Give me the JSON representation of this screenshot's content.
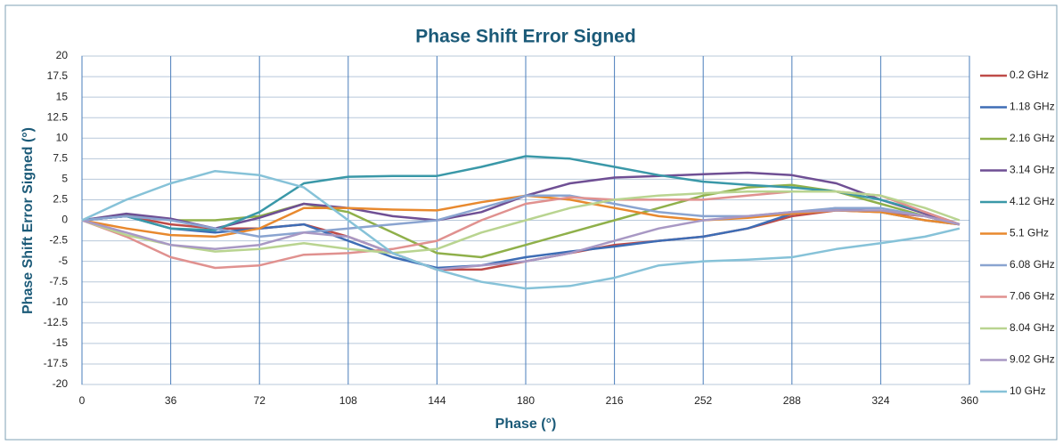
{
  "chart_data": {
    "type": "line",
    "title": "Phase Shift Error Signed",
    "xlabel": "Phase (°)",
    "ylabel": "Phase Shift Error Signed (°)",
    "x": [
      0,
      18,
      36,
      54,
      72,
      90,
      108,
      126,
      144,
      162,
      180,
      198,
      216,
      234,
      252,
      270,
      288,
      306,
      324,
      342,
      356
    ],
    "series": [
      {
        "name": "0.2 GHz",
        "color": "#be4b48",
        "values": [
          0,
          0.5,
          -0.5,
          -1,
          -1,
          -0.5,
          -2,
          -4,
          -6,
          -6,
          -5,
          -4,
          -3,
          -2.5,
          -2,
          -1,
          0.5,
          1.2,
          1,
          0.5,
          -0.5
        ]
      },
      {
        "name": "1.18 GHz",
        "color": "#3e6db5",
        "values": [
          0,
          0.5,
          -1,
          -1.5,
          -1,
          -0.5,
          -2.5,
          -4.5,
          -5.8,
          -5.5,
          -4.5,
          -3.8,
          -3.2,
          -2.5,
          -2,
          -1,
          0.8,
          1.5,
          1,
          0,
          -0.5
        ]
      },
      {
        "name": "2.16 GHz",
        "color": "#8fb04a",
        "values": [
          0,
          0.7,
          0,
          0,
          0.5,
          2,
          1,
          -1.5,
          -4,
          -4.5,
          -3,
          -1.5,
          0,
          1.5,
          3,
          4,
          4.3,
          3.5,
          2,
          0.5,
          -0.5
        ]
      },
      {
        "name": "3.14 GHz",
        "color": "#6f4f94",
        "values": [
          0,
          0.8,
          0.2,
          -1,
          0.3,
          2,
          1.5,
          0.5,
          0,
          1,
          3,
          4.5,
          5.2,
          5.4,
          5.6,
          5.8,
          5.5,
          4.5,
          2.5,
          0.8,
          -0.5
        ]
      },
      {
        "name": "4.12 GHz",
        "color": "#3a98a8",
        "values": [
          0,
          0.5,
          -1,
          -1.2,
          1,
          4.5,
          5.3,
          5.4,
          5.4,
          6.5,
          7.8,
          7.5,
          6.5,
          5.5,
          4.7,
          4.3,
          4,
          3.5,
          2.5,
          1,
          -0.5
        ]
      },
      {
        "name": "5.1 GHz",
        "color": "#e8892e",
        "values": [
          0,
          -1,
          -1.8,
          -2,
          -1,
          1.5,
          1.5,
          1.3,
          1.2,
          2.2,
          3,
          2.5,
          1.5,
          0.5,
          0,
          0.3,
          0.8,
          1.2,
          1,
          0,
          -0.5
        ]
      },
      {
        "name": "6.08 GHz",
        "color": "#8aa4d0",
        "values": [
          0,
          0.5,
          0,
          -1,
          -2,
          -1.5,
          -1,
          -0.5,
          0,
          1.5,
          3,
          3,
          2,
          1,
          0.5,
          0.5,
          1,
          1.5,
          1.5,
          0.5,
          -0.5
        ]
      },
      {
        "name": "7.06 GHz",
        "color": "#e0918f",
        "values": [
          0,
          -2,
          -4.5,
          -5.8,
          -5.5,
          -4.2,
          -4,
          -3.5,
          -2.5,
          0,
          2,
          2.8,
          2.5,
          2.5,
          2.5,
          3,
          3.5,
          3.5,
          3,
          1,
          -0.5
        ]
      },
      {
        "name": "8.04 GHz",
        "color": "#b9d490",
        "values": [
          0,
          -1.8,
          -3,
          -3.8,
          -3.5,
          -2.8,
          -3.5,
          -4,
          -3.5,
          -1.5,
          0,
          1.5,
          2.5,
          3,
          3.3,
          3.5,
          3.5,
          3.5,
          3,
          1.5,
          0
        ]
      },
      {
        "name": "9.02 GHz",
        "color": "#a898c4",
        "values": [
          0,
          -1.5,
          -3,
          -3.5,
          -3,
          -1.5,
          -2,
          -4,
          -6,
          -5.5,
          -5,
          -4,
          -2.5,
          -1,
          0,
          0.5,
          1,
          1.2,
          1.2,
          0.5,
          -0.5
        ]
      },
      {
        "name": "10 GHz",
        "color": "#86c2d8",
        "values": [
          0,
          2.5,
          4.5,
          6,
          5.5,
          4,
          0,
          -4,
          -6,
          -7.5,
          -8.3,
          -8,
          -7,
          -5.5,
          -5,
          -4.8,
          -4.5,
          -3.5,
          -2.8,
          -2,
          -1
        ]
      }
    ],
    "xlim": [
      0,
      360
    ],
    "xticks": [
      0,
      36,
      72,
      108,
      144,
      180,
      216,
      252,
      288,
      324,
      360
    ],
    "ylim": [
      -20,
      20
    ],
    "yticks": [
      -20,
      -17.5,
      -15,
      -12.5,
      -10,
      -7.5,
      -5,
      -2.5,
      0,
      2.5,
      5,
      7.5,
      10,
      12.5,
      15,
      17.5,
      20
    ],
    "grid": true,
    "legend": "right"
  }
}
